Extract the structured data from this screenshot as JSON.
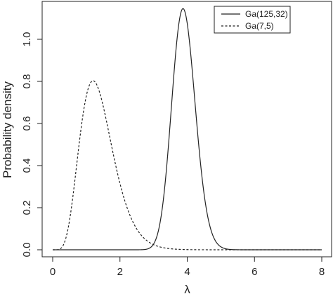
{
  "chart_data": {
    "type": "line",
    "title": "",
    "xlabel": "λ",
    "ylabel": "Probability density",
    "xlim": [
      0,
      8
    ],
    "ylim": [
      0,
      1.14
    ],
    "x_ticks": [
      0,
      2,
      4,
      6,
      8
    ],
    "y_ticks": [
      0.0,
      0.2,
      0.4,
      0.6,
      0.8,
      1.0
    ],
    "x_tick_labels": [
      "0",
      "2",
      "4",
      "6",
      "8"
    ],
    "y_tick_labels": [
      "0.0",
      "0.2",
      "0.4",
      "0.6",
      "0.8",
      "1.0"
    ],
    "grid": false,
    "legend_position": "top-right",
    "series": [
      {
        "name": "Ga(125,32)",
        "line_style": "solid",
        "color": "#222222",
        "distribution": "gamma",
        "shape": 125,
        "rate": 32,
        "x_range": [
          0,
          8
        ],
        "peak": {
          "x": 3.88,
          "y": 1.14
        }
      },
      {
        "name": "Ga(7,5)",
        "line_style": "dashed",
        "color": "#222222",
        "distribution": "gamma",
        "shape": 7,
        "rate": 5,
        "x_range": [
          0,
          8
        ],
        "peak": {
          "x": 1.2,
          "y": 0.8
        }
      }
    ]
  }
}
